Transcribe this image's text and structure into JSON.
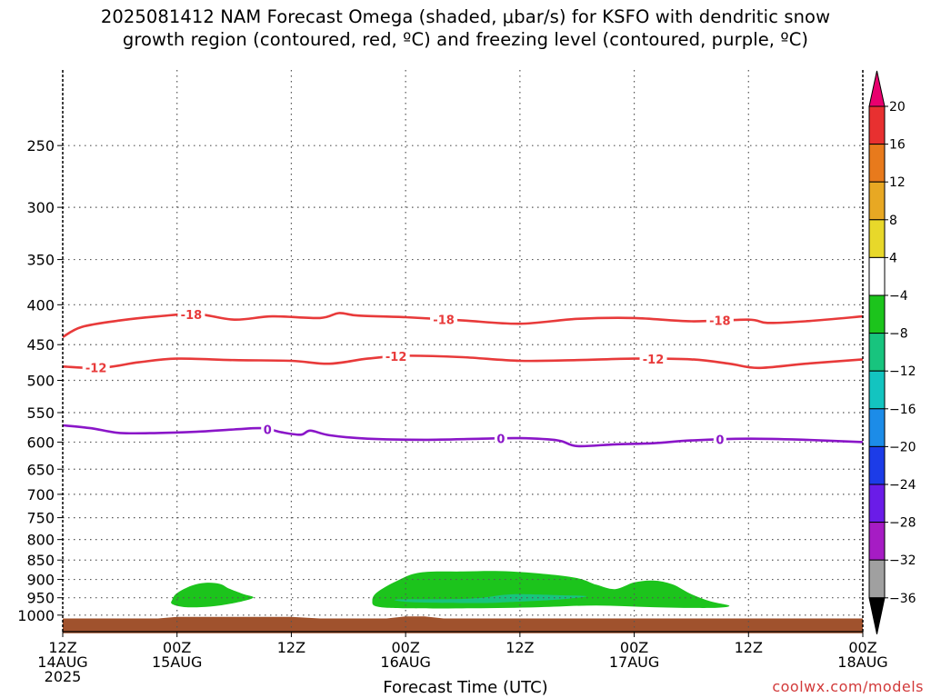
{
  "title": {
    "line1": "2025081412 NAM Forecast Omega (shaded, μbar/s) for KSFO with dendritic snow",
    "line2": "growth region (contoured, red, ºC) and freezing level (contoured, purple, ºC)"
  },
  "credit": "coolwx.com/models",
  "chart_data": {
    "type": "heatmap",
    "title": "2025081412 NAM Forecast Omega (shaded, μbar/s) for KSFO with dendritic snow growth region (contoured, red, ºC) and freezing level (contoured, purple, ºC)",
    "xlabel": "Forecast Time (UTC)",
    "ylabel": "",
    "x_unit": "forecast hour",
    "xlim": [
      0,
      84
    ],
    "y_scale": "log-pressure (inverted)",
    "ylim": [
      1050,
      200
    ],
    "grid": true,
    "x_ticks": [
      {
        "hour": 0,
        "label": [
          "12Z",
          "14AUG",
          "2025"
        ]
      },
      {
        "hour": 12,
        "label": [
          "00Z",
          "15AUG"
        ]
      },
      {
        "hour": 24,
        "label": [
          "12Z"
        ]
      },
      {
        "hour": 36,
        "label": [
          "00Z",
          "16AUG"
        ]
      },
      {
        "hour": 48,
        "label": [
          "12Z"
        ]
      },
      {
        "hour": 60,
        "label": [
          "00Z",
          "17AUG"
        ]
      },
      {
        "hour": 72,
        "label": [
          "12Z"
        ]
      },
      {
        "hour": 84,
        "label": [
          "00Z",
          "18AUG"
        ]
      }
    ],
    "y_ticks": [
      250,
      300,
      350,
      400,
      450,
      500,
      550,
      600,
      650,
      700,
      750,
      800,
      850,
      900,
      950,
      1000
    ],
    "colorbar": {
      "levels": [
        "20",
        "16",
        "12",
        "8",
        "4",
        "−4",
        "−8",
        "−12",
        "−16",
        "−20",
        "−24",
        "−28",
        "−32",
        "−36"
      ],
      "colors": [
        "#e8006e",
        "#e83030",
        "#e87a1c",
        "#e8a823",
        "#e8d82a",
        "#ffffff",
        "#1cc41c",
        "#18c47e",
        "#13c4c0",
        "#1c8ce8",
        "#1c3ce8",
        "#6a1ce8",
        "#a61cc4",
        "#a0a0a0",
        "#000000"
      ]
    },
    "shaded_regions": [
      {
        "name": "omega -4 to -8",
        "color": "#1cc41c",
        "polygons": [
          [
            [
              11.5,
              955
            ],
            [
              12,
              937
            ],
            [
              13.5,
              917
            ],
            [
              15,
              909
            ],
            [
              16.5,
              912
            ],
            [
              17.5,
              925
            ],
            [
              19,
              940
            ],
            [
              20,
              950
            ],
            [
              18,
              965
            ],
            [
              15.5,
              975
            ],
            [
              13,
              977
            ],
            [
              11.5,
              968
            ]
          ],
          [
            [
              32.5,
              958
            ],
            [
              33,
              935
            ],
            [
              35,
              905
            ],
            [
              37.5,
              882
            ],
            [
              42,
              879
            ],
            [
              47,
              879
            ],
            [
              53.5,
              894
            ],
            [
              56,
              914
            ],
            [
              58,
              926
            ],
            [
              60,
              908
            ],
            [
              62,
              903
            ],
            [
              64,
              913
            ],
            [
              66,
              940
            ],
            [
              68,
              960
            ],
            [
              70,
              973
            ],
            [
              68,
              979
            ],
            [
              62,
              977
            ],
            [
              56,
              972
            ],
            [
              50,
              977
            ],
            [
              43,
              980
            ],
            [
              36,
              980
            ],
            [
              33,
              975
            ]
          ]
        ]
      },
      {
        "name": "omega -8 to -12",
        "color": "#18c47e",
        "polygons": [
          [
            [
              35,
              955
            ],
            [
              41,
              954
            ],
            [
              44,
              950
            ],
            [
              46,
              943
            ],
            [
              48,
              940
            ],
            [
              52,
              943
            ],
            [
              55,
              946
            ],
            [
              52,
              955
            ],
            [
              47,
              962
            ],
            [
              44,
              965
            ],
            [
              37,
              963
            ]
          ]
        ]
      },
      {
        "name": "ground",
        "color": "#a0522d",
        "polygons": [
          [
            [
              0,
              1055
            ],
            [
              0,
              1010
            ],
            [
              10,
              1010
            ],
            [
              12,
              1005
            ],
            [
              24,
              1005
            ],
            [
              27,
              1010
            ],
            [
              34,
              1010
            ],
            [
              36,
              1004
            ],
            [
              38,
              1004
            ],
            [
              40,
              1010
            ],
            [
              84,
              1010
            ],
            [
              84,
              1055
            ]
          ]
        ]
      }
    ],
    "series": [
      {
        "name": "-18",
        "points": [
          [
            0,
            440
          ],
          [
            2,
            427
          ],
          [
            6,
            419
          ],
          [
            10,
            414
          ],
          [
            14,
            411
          ],
          [
            18,
            418
          ],
          [
            22,
            414
          ],
          [
            27,
            416
          ],
          [
            29,
            410
          ],
          [
            31,
            413
          ],
          [
            36,
            415
          ],
          [
            42,
            419
          ],
          [
            48,
            423
          ],
          [
            54,
            417
          ],
          [
            60,
            416
          ],
          [
            66,
            420
          ],
          [
            72,
            418
          ],
          [
            74,
            422
          ],
          [
            78,
            420
          ],
          [
            84,
            414
          ]
        ],
        "labels": [
          {
            "x": 13.5,
            "text": "-18"
          },
          {
            "x": 40,
            "text": "-18"
          },
          {
            "x": 69,
            "text": "-18"
          }
        ]
      },
      {
        "name": "-12",
        "points": [
          [
            0,
            480
          ],
          [
            4,
            482
          ],
          [
            8,
            474
          ],
          [
            12,
            469
          ],
          [
            18,
            471
          ],
          [
            24,
            472
          ],
          [
            28,
            476
          ],
          [
            32,
            469
          ],
          [
            36,
            465
          ],
          [
            42,
            467
          ],
          [
            48,
            472
          ],
          [
            54,
            471
          ],
          [
            60,
            469
          ],
          [
            66,
            470
          ],
          [
            70,
            476
          ],
          [
            73,
            482
          ],
          [
            78,
            476
          ],
          [
            84,
            470
          ]
        ],
        "labels": [
          {
            "x": 3.5,
            "text": "-12"
          },
          {
            "x": 35,
            "text": "-12"
          },
          {
            "x": 62,
            "text": "-12"
          }
        ]
      },
      {
        "name": "0",
        "points": [
          [
            0,
            571
          ],
          [
            3,
            576
          ],
          [
            6,
            584
          ],
          [
            10,
            584
          ],
          [
            14,
            582
          ],
          [
            18,
            578
          ],
          [
            21,
            576
          ],
          [
            23,
            583
          ],
          [
            25,
            587
          ],
          [
            26,
            580
          ],
          [
            28,
            588
          ],
          [
            32,
            594
          ],
          [
            38,
            596
          ],
          [
            44,
            594
          ],
          [
            48,
            593
          ],
          [
            52,
            597
          ],
          [
            54,
            607
          ],
          [
            58,
            604
          ],
          [
            62,
            602
          ],
          [
            66,
            597
          ],
          [
            72,
            594
          ],
          [
            78,
            596
          ],
          [
            84,
            600
          ]
        ],
        "labels": [
          {
            "x": 21.5,
            "text": "0"
          },
          {
            "x": 46,
            "text": "0"
          },
          {
            "x": 69,
            "text": "0"
          }
        ]
      }
    ]
  }
}
